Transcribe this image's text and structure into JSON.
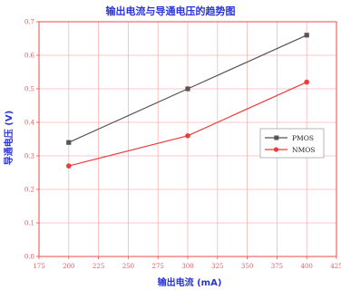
{
  "chart_data": {
    "type": "line",
    "title": "输出电流与导通电压的趋势图",
    "xlabel": "输出电流 (mA)",
    "ylabel": "导通电压 (V)",
    "x": [
      200,
      300,
      400
    ],
    "xlim": [
      175,
      425
    ],
    "ylim": [
      0,
      0.7
    ],
    "xticks": [
      "175",
      "200",
      "225",
      "250",
      "275",
      "300",
      "325",
      "350",
      "375",
      "400",
      "425"
    ],
    "yticks": [
      "0.0",
      "0.1",
      "0.2",
      "0.3",
      "0.4",
      "0.5",
      "0.6",
      "0.7"
    ],
    "grid": true,
    "legend_position": "right-middle",
    "series": [
      {
        "name": "PMOS",
        "values": [
          0.34,
          0.5,
          0.66
        ],
        "color": "#555555"
      },
      {
        "name": "NMOS",
        "values": [
          0.27,
          0.36,
          0.52
        ],
        "color": "#ee3b3b"
      }
    ],
    "colors": {
      "title": "#2a34d8",
      "axis": "#ee4b4b",
      "grid": "#f6b6b6"
    }
  }
}
